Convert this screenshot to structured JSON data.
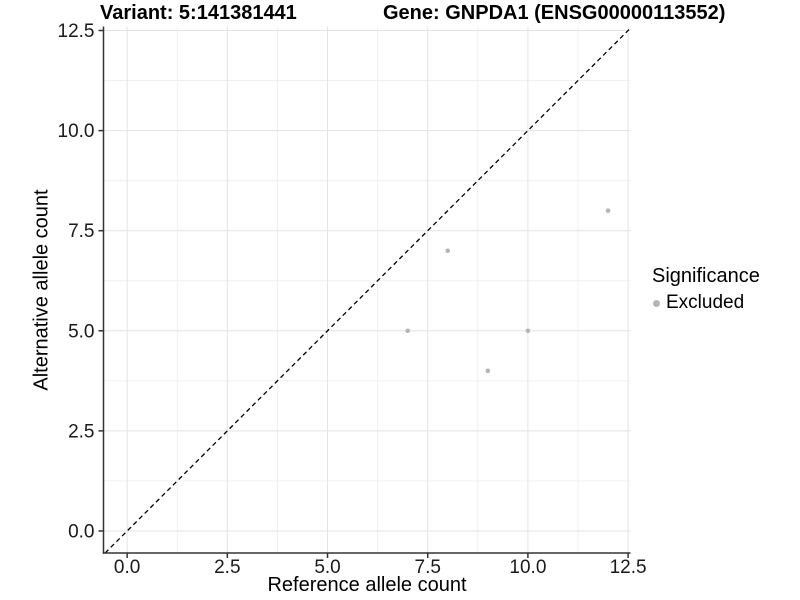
{
  "header": {
    "variant_title": "Variant: 5:141381441",
    "gene_title": "Gene: GNPDA1 (ENSG00000113552)"
  },
  "legend": {
    "title": "Significance",
    "entries": [
      {
        "label": "Excluded",
        "color": "#b5b5b5"
      }
    ]
  },
  "chart_data": {
    "type": "scatter",
    "title": "Variant: 5:141381441  |  Gene: GNPDA1 (ENSG00000113552)",
    "xlabel": "Reference allele count",
    "ylabel": "Alternative allele count",
    "xlim": [
      -0.59,
      12.56
    ],
    "ylim": [
      -0.55,
      12.6
    ],
    "x_ticks": [
      0.0,
      2.5,
      5.0,
      7.5,
      10.0,
      12.5
    ],
    "y_ticks": [
      0.0,
      2.5,
      5.0,
      7.5,
      10.0,
      12.5
    ],
    "x_tick_labels": [
      "0.0",
      "2.5",
      "5.0",
      "7.5",
      "10.0",
      "12.5"
    ],
    "y_tick_labels": [
      "0.0",
      "2.5",
      "5.0",
      "7.5",
      "10.0",
      "12.5"
    ],
    "grid": {
      "major": true,
      "minor": true,
      "major_color": "#e3e3e3",
      "minor_color": "#f0f0f0"
    },
    "reference_line": {
      "kind": "y=x",
      "style": "dashed",
      "color": "#000000"
    },
    "legend_position": "right",
    "series": [
      {
        "name": "Excluded",
        "color": "#b5b5b5",
        "points": [
          [
            7,
            5
          ],
          [
            8,
            7
          ],
          [
            9,
            4
          ],
          [
            10,
            5
          ],
          [
            12,
            8
          ]
        ]
      }
    ]
  }
}
